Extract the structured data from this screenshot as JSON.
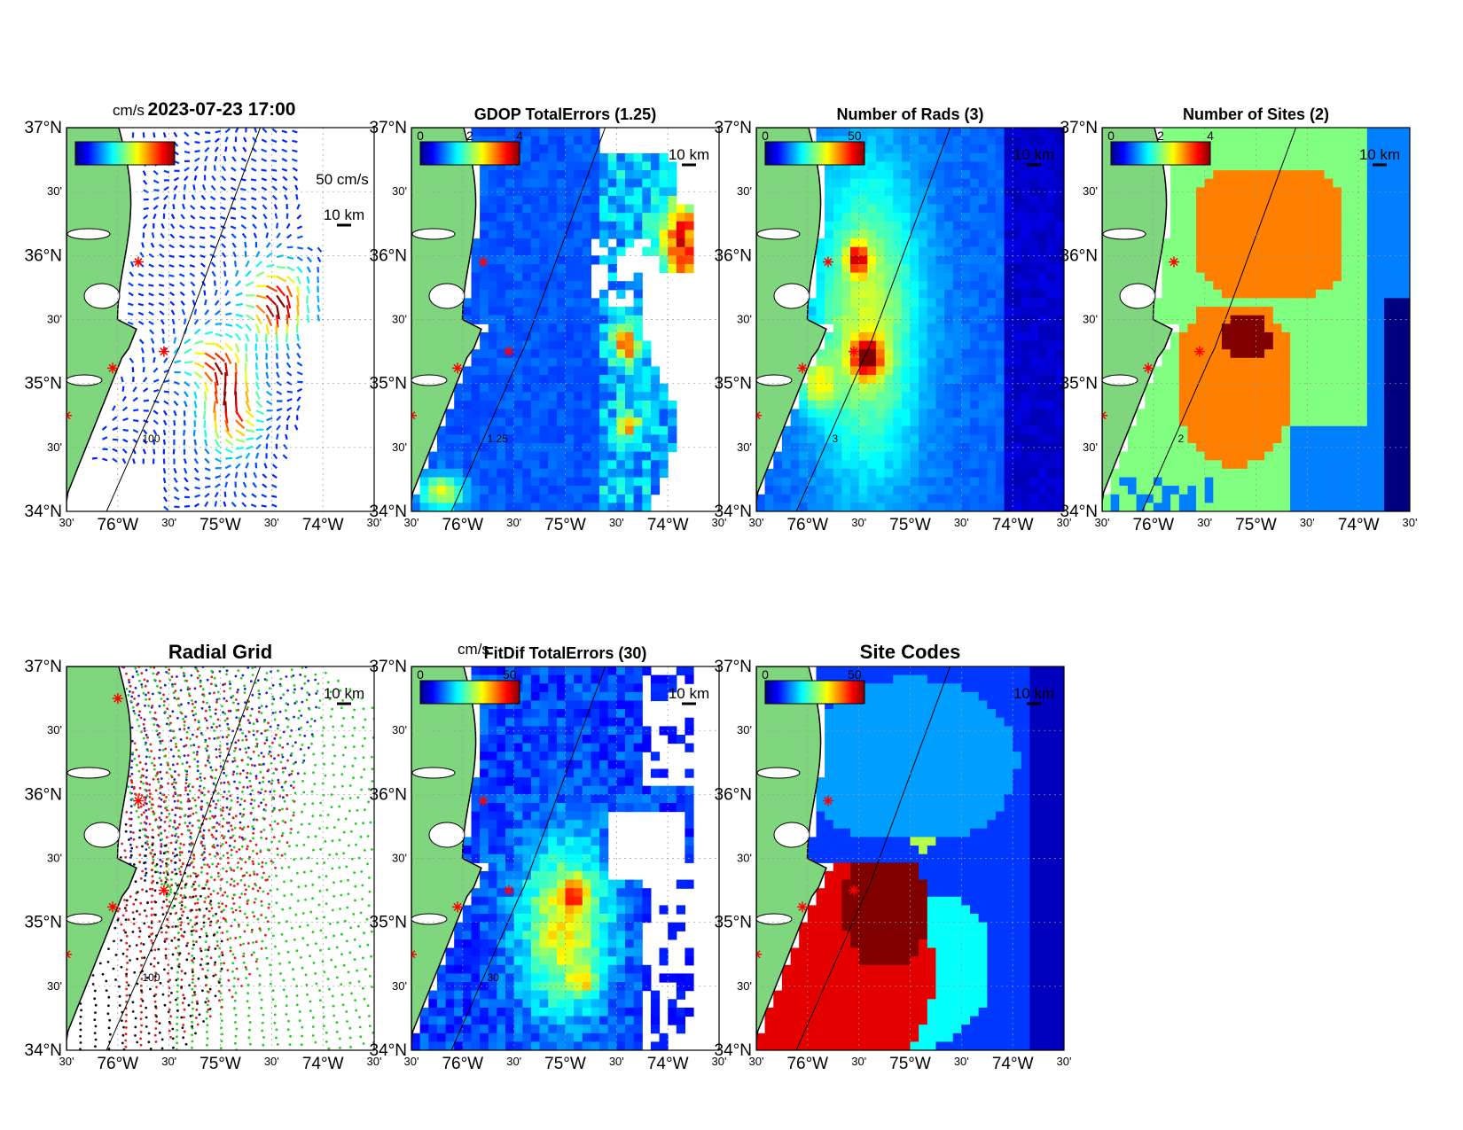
{
  "figure_title": "2023-07-23 17:00",
  "axes": {
    "lat_labels": [
      "37°N",
      "30'",
      "36°N",
      "30'",
      "35°N",
      "30'",
      "34°N"
    ],
    "lon_labels": [
      "30'",
      "76°W",
      "30'",
      "75°W",
      "30'",
      "74°W",
      "30'"
    ]
  },
  "panels": [
    {
      "id": "velocity",
      "title": "",
      "colorbar_unit": "cm/s",
      "colorbar_ticks": [],
      "scale_label": "10 km",
      "vector_label": "50 cm/s",
      "contour_label": "100",
      "field": "velocity"
    },
    {
      "id": "gdop",
      "title": "GDOP TotalErrors (1.25)",
      "colorbar_unit": "",
      "colorbar_ticks": [
        "0",
        "2",
        "4"
      ],
      "scale_label": "10 km",
      "contour_label": "1.25",
      "field": "gdop"
    },
    {
      "id": "nrads",
      "title": "Number of Rads (3)",
      "colorbar_unit": "",
      "colorbar_ticks": [
        "0",
        "50"
      ],
      "scale_label": "10 km",
      "contour_label": "3",
      "field": "nrads"
    },
    {
      "id": "nsites",
      "title": "Number of Sites (2)",
      "colorbar_unit": "",
      "colorbar_ticks": [
        "0",
        "2",
        "4"
      ],
      "scale_label": "10 km",
      "contour_label": "2",
      "field": "nsites"
    },
    {
      "id": "radial",
      "title": "Radial Grid",
      "colorbar_unit": "",
      "colorbar_ticks": [],
      "scale_label": "10 km",
      "contour_label": "100",
      "field": "radial"
    },
    {
      "id": "fitdif",
      "title": "FitDif TotalErrors (30)",
      "colorbar_unit": "cm/s",
      "colorbar_ticks": [
        "0",
        "50"
      ],
      "scale_label": "10 km",
      "contour_label": "30",
      "field": "fitdif"
    },
    {
      "id": "sitecodes",
      "title": "Site Codes",
      "colorbar_unit": "",
      "colorbar_ticks": [
        "0",
        "50"
      ],
      "scale_label": "10 km",
      "contour_label": "",
      "field": "sitecodes"
    }
  ],
  "sites": [
    {
      "lon": -76.0,
      "lat": 36.75
    },
    {
      "lon": -75.8,
      "lat": 35.95
    },
    {
      "lon": -75.55,
      "lat": 35.25
    },
    {
      "lon": -76.05,
      "lat": 35.12
    },
    {
      "lon": -76.5,
      "lat": 34.75
    }
  ],
  "colors": {
    "land": "#7fd67f",
    "site_marker": "#ff0000",
    "radial_sites": [
      "#1f1fd0",
      "#e02020",
      "#20d020",
      "#e02020",
      "#101010"
    ]
  }
}
